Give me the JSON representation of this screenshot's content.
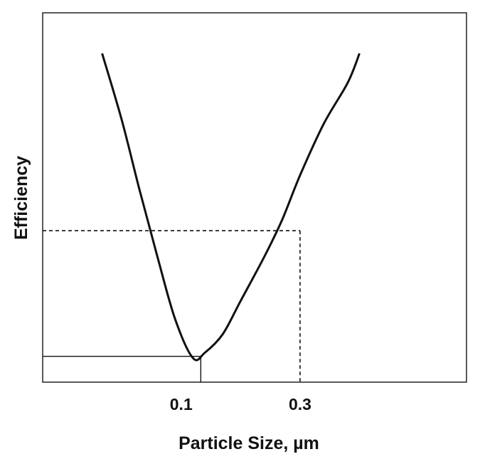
{
  "chart_data": {
    "type": "line",
    "title": "",
    "xlabel": "Particle Size, µm",
    "ylabel": "Efficiency",
    "x_ticks": [
      {
        "value": 0.1,
        "label": "0.1"
      },
      {
        "value": 0.3,
        "label": "0.3"
      }
    ],
    "xlim": [
      -0.133,
      0.58
    ],
    "ylim": [
      0,
      1
    ],
    "series": [
      {
        "values": [
          {
            "x": -0.033,
            "y": 0.89
          },
          {
            "x": 0.0,
            "y": 0.71
          },
          {
            "x": 0.03,
            "y": 0.52
          },
          {
            "x": 0.06,
            "y": 0.34
          },
          {
            "x": 0.09,
            "y": 0.17
          },
          {
            "x": 0.12,
            "y": 0.065
          },
          {
            "x": 0.14,
            "y": 0.08
          },
          {
            "x": 0.17,
            "y": 0.13
          },
          {
            "x": 0.2,
            "y": 0.22
          },
          {
            "x": 0.24,
            "y": 0.34
          },
          {
            "x": 0.27,
            "y": 0.44
          },
          {
            "x": 0.3,
            "y": 0.56
          },
          {
            "x": 0.34,
            "y": 0.7
          },
          {
            "x": 0.38,
            "y": 0.81
          },
          {
            "x": 0.4,
            "y": 0.89
          }
        ]
      }
    ],
    "reference_lines": [
      {
        "style": "dashed",
        "kind": "horizontal",
        "y": 0.41
      },
      {
        "style": "dashed",
        "kind": "vertical",
        "x": 0.3
      },
      {
        "style": "solid",
        "kind": "horizontal",
        "y": 0.07
      },
      {
        "style": "solid",
        "kind": "vertical",
        "x": 0.133
      }
    ],
    "grid": false,
    "legend": "none",
    "colors": {
      "curve": "#111111",
      "axes": "#222222"
    }
  }
}
